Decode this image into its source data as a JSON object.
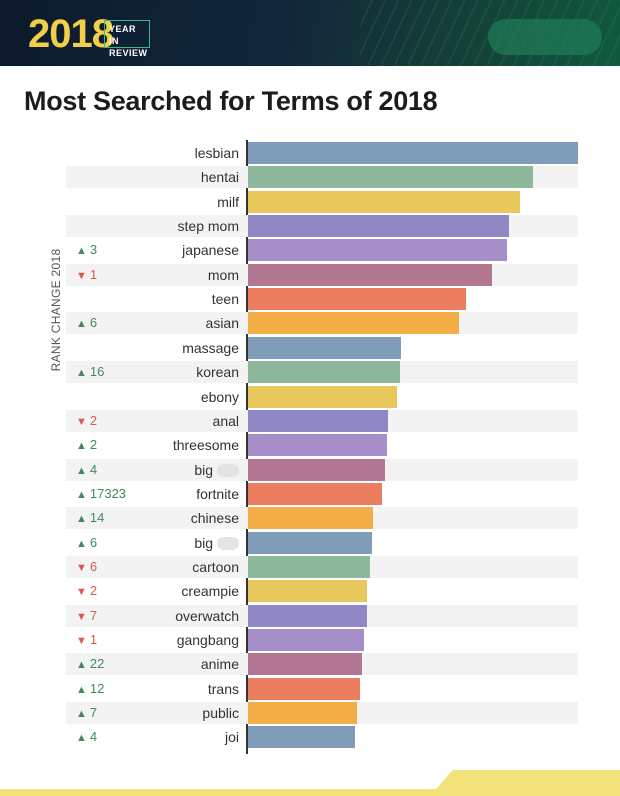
{
  "header": {
    "year": "2018",
    "tag_line1": "YEAR IN",
    "tag_line2": "REVIEW"
  },
  "title": "Most Searched for Terms of 2018",
  "colors": {
    "blue": "#7f9db8",
    "green": "#8db89c",
    "yellow": "#e8c85c",
    "violet": "#8f88c4",
    "lavender": "#a68ec8",
    "mauve": "#b27891",
    "coral": "#ec7e5f",
    "orange": "#f3ae47",
    "up": "#3e8a5c",
    "down": "#e2574c"
  },
  "chart_data": {
    "type": "bar",
    "orientation": "horizontal",
    "title": "Most Searched for Terms of 2018",
    "rank_axis_label": "RANK CHANGE 2018",
    "categories": [
      "lesbian",
      "hentai",
      "milf",
      "step mom",
      "japanese",
      "mom",
      "teen",
      "asian",
      "massage",
      "korean",
      "ebony",
      "anal",
      "threesome",
      "big",
      "fortnite",
      "chinese",
      "big",
      "cartoon",
      "creampie",
      "overwatch",
      "gangbang",
      "anime",
      "trans",
      "public",
      "joi"
    ],
    "values": [
      100,
      86.5,
      82.5,
      79,
      78.5,
      74,
      66,
      64,
      46.5,
      46,
      45,
      42.5,
      42,
      41.5,
      40.5,
      38,
      37.5,
      37,
      36,
      36,
      35,
      34.5,
      34,
      33,
      32.5
    ],
    "rank_changes": [
      "",
      "",
      "",
      "",
      "3",
      "1",
      "",
      "6",
      "",
      "16",
      "",
      "2",
      "2",
      "4",
      "17323",
      "14",
      "6",
      "6",
      "2",
      "7",
      "1",
      "22",
      "12",
      "7",
      "4"
    ],
    "rank_directions": [
      "",
      "",
      "",
      "",
      "up",
      "down",
      "",
      "up",
      "",
      "up",
      "",
      "down",
      "up",
      "up",
      "up",
      "up",
      "up",
      "down",
      "down",
      "down",
      "down",
      "up",
      "up",
      "up",
      "up"
    ],
    "xlim": [
      0,
      100
    ],
    "grid": false
  }
}
